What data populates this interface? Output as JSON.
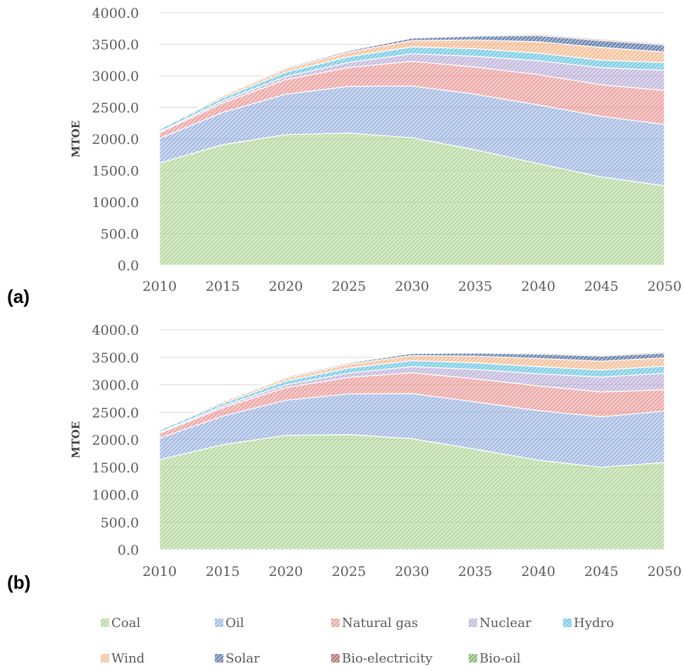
{
  "chart_data": [
    {
      "type": "area",
      "stacked": true,
      "panel_label": "(a)",
      "ylabel": "MTOE",
      "xlabel": "",
      "ylim": [
        0,
        4000
      ],
      "y_ticks": [
        "0.0",
        "500.0",
        "1000.0",
        "1500.0",
        "2000.0",
        "2500.0",
        "3000.0",
        "3500.0",
        "4000.0"
      ],
      "x": [
        "2010",
        "2015",
        "2020",
        "2025",
        "2030",
        "2035",
        "2040",
        "2045",
        "2050"
      ],
      "grid": "horizontal",
      "series": [
        {
          "name": "Coal",
          "values": [
            1620,
            1910,
            2070,
            2095,
            2020,
            1830,
            1610,
            1400,
            1260
          ]
        },
        {
          "name": "Oil",
          "values": [
            390,
            510,
            640,
            740,
            820,
            880,
            930,
            960,
            970
          ]
        },
        {
          "name": "Natural gas",
          "values": [
            90,
            150,
            230,
            300,
            390,
            430,
            480,
            500,
            540
          ]
        },
        {
          "name": "Nuclear",
          "values": [
            15,
            35,
            50,
            80,
            120,
            170,
            220,
            270,
            320
          ]
        },
        {
          "name": "Hydro",
          "values": [
            40,
            50,
            70,
            90,
            110,
            120,
            120,
            120,
            120
          ]
        },
        {
          "name": "Wind",
          "values": [
            10,
            30,
            50,
            70,
            100,
            140,
            180,
            200,
            170
          ]
        },
        {
          "name": "Solar",
          "values": [
            5,
            10,
            20,
            25,
            40,
            60,
            100,
            110,
            110
          ]
        },
        {
          "name": "Bio-electricity",
          "values": [
            5,
            5,
            10,
            10,
            15,
            15,
            20,
            20,
            20
          ]
        },
        {
          "name": "Bio-oil",
          "values": [
            5,
            5,
            10,
            10,
            10,
            10,
            10,
            10,
            10
          ]
        }
      ]
    },
    {
      "type": "area",
      "stacked": true,
      "panel_label": "(b)",
      "ylabel": "MTOE",
      "xlabel": "",
      "ylim": [
        0,
        4000
      ],
      "y_ticks": [
        "0.0",
        "500.0",
        "1000.0",
        "1500.0",
        "2000.0",
        "2500.0",
        "3000.0",
        "3500.0",
        "4000.0"
      ],
      "x": [
        "2010",
        "2015",
        "2020",
        "2025",
        "2030",
        "2035",
        "2040",
        "2045",
        "2050"
      ],
      "grid": "horizontal",
      "series": [
        {
          "name": "Coal",
          "values": [
            1640,
            1910,
            2080,
            2095,
            2020,
            1830,
            1630,
            1500,
            1590
          ]
        },
        {
          "name": "Oil",
          "values": [
            390,
            520,
            640,
            740,
            820,
            860,
            900,
            920,
            930
          ]
        },
        {
          "name": "Natural gas",
          "values": [
            90,
            150,
            230,
            300,
            380,
            420,
            450,
            450,
            390
          ]
        },
        {
          "name": "Nuclear",
          "values": [
            15,
            35,
            50,
            80,
            110,
            170,
            220,
            270,
            300
          ]
        },
        {
          "name": "Hydro",
          "values": [
            40,
            50,
            70,
            90,
            110,
            120,
            130,
            130,
            130
          ]
        },
        {
          "name": "Wind",
          "values": [
            10,
            30,
            50,
            70,
            90,
            120,
            150,
            160,
            150
          ]
        },
        {
          "name": "Solar",
          "values": [
            5,
            10,
            20,
            25,
            40,
            60,
            80,
            90,
            90
          ]
        },
        {
          "name": "Bio-electricity",
          "values": [
            5,
            5,
            10,
            10,
            15,
            15,
            20,
            20,
            20
          ]
        },
        {
          "name": "Bio-oil",
          "values": [
            5,
            5,
            10,
            10,
            10,
            10,
            10,
            10,
            10
          ]
        }
      ]
    }
  ],
  "legend": {
    "placement": "bottom",
    "items": [
      {
        "name": "Coal",
        "color": "#a9d18e"
      },
      {
        "name": "Oil",
        "color": "#8faadc"
      },
      {
        "name": "Natural gas",
        "color": "#e8908f"
      },
      {
        "name": "Nuclear",
        "color": "#b4a7d6"
      },
      {
        "name": "Hydro",
        "color": "#5bc0de"
      },
      {
        "name": "Wind",
        "color": "#f4b183"
      },
      {
        "name": "Solar",
        "color": "#44679b"
      },
      {
        "name": "Bio-electricity",
        "color": "#a64d4d"
      },
      {
        "name": "Bio-oil",
        "color": "#6aa84f"
      }
    ]
  }
}
